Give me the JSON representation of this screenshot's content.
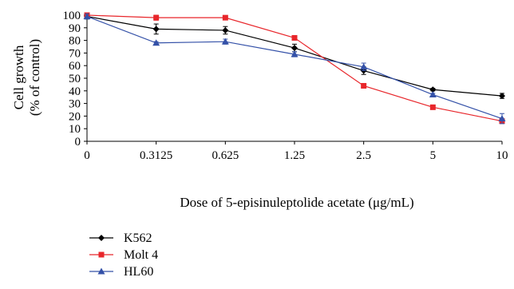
{
  "chart_data": {
    "type": "line",
    "title": "",
    "xlabel": "Dose of 5-episinuleptolide acetate (μg/mL)",
    "ylabel_lines": [
      "Cell growth",
      "(% of control)"
    ],
    "categories": [
      "0",
      "0.3125",
      "0.625",
      "1.25",
      "2.5",
      "5",
      "10"
    ],
    "ylim": [
      0,
      100
    ],
    "yticks": [
      0,
      10,
      20,
      30,
      40,
      50,
      60,
      70,
      80,
      90,
      100
    ],
    "grid": false,
    "legend_position": "bottom-left",
    "series": [
      {
        "name": "K562",
        "marker": "diamond",
        "color": "#000000",
        "values": [
          99,
          89,
          88,
          74,
          56,
          41,
          36
        ],
        "errors": [
          2,
          4,
          3,
          3,
          3,
          1,
          2
        ]
      },
      {
        "name": "Molt 4",
        "marker": "square",
        "color": "#e8262b",
        "values": [
          100,
          98,
          98,
          82,
          44,
          27,
          16
        ],
        "errors": [
          1,
          2,
          1,
          1,
          1,
          1,
          1
        ]
      },
      {
        "name": "HL60",
        "marker": "triangle",
        "color": "#3451a8",
        "values": [
          99,
          78,
          79,
          69,
          59,
          37,
          18
        ],
        "errors": [
          2,
          1,
          2,
          2,
          3,
          1,
          4
        ]
      }
    ]
  }
}
